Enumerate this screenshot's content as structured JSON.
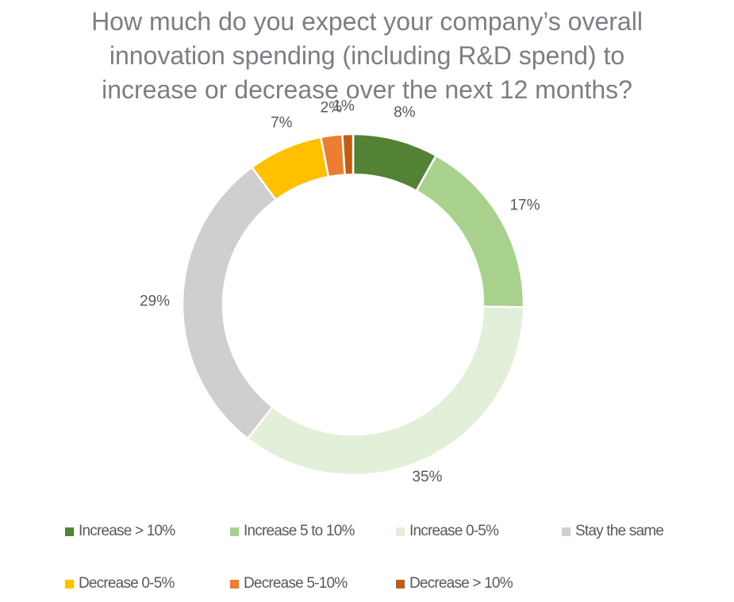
{
  "chart_data": {
    "type": "pie",
    "title": [
      "How much do you expect your company’s overall",
      "innovation spending (including R&D spend) to",
      "increase or decrease over the next 12 months?"
    ],
    "categories": [
      "Increase > 10%",
      "Increase 5 to 10%",
      "Increase 0-5%",
      "Stay the same",
      "Decrease 0-5%",
      "Decrease 5-10%",
      "Decrease > 10%"
    ],
    "values": [
      8,
      17,
      35,
      29,
      7,
      2,
      1
    ],
    "labels": [
      "8%",
      "17%",
      "35%",
      "29%",
      "7%",
      "2%",
      "1%"
    ],
    "colors": [
      "#548235",
      "#a9d18e",
      "#e2efd9",
      "#d0cece",
      "#ffc000",
      "#ed7d31",
      "#c55a11"
    ],
    "donut": true,
    "legend_position": "bottom"
  }
}
